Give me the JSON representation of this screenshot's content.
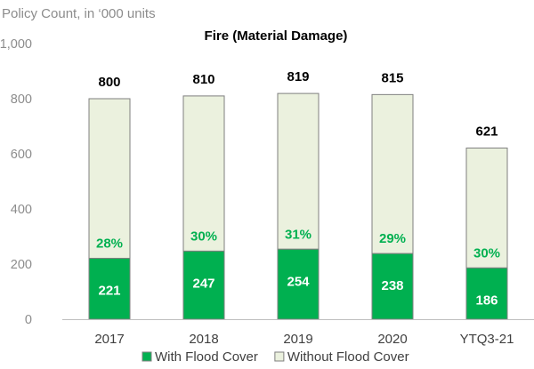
{
  "chart_data": {
    "type": "bar",
    "stacked": true,
    "title": "Fire (Material Damage)",
    "ylabel": "Policy Count, in ‘000 units",
    "xlabel": "",
    "ylim": [
      0,
      1000
    ],
    "yticks": [
      "0",
      "200",
      "400",
      "600",
      "800",
      "1,000"
    ],
    "ytick_values": [
      0,
      200,
      400,
      600,
      800,
      1000
    ],
    "grid": false,
    "legend_position": "bottom",
    "categories": [
      "2017",
      "2018",
      "2019",
      "2020",
      "YTQ3-21"
    ],
    "totals": [
      800,
      810,
      819,
      815,
      621
    ],
    "percent_labels": [
      "28%",
      "30%",
      "31%",
      "29%",
      "30%"
    ],
    "series": [
      {
        "name": "With Flood Cover",
        "values": [
          221,
          247,
          254,
          238,
          186
        ],
        "color": "#00b050"
      },
      {
        "name": "Without Flood Cover",
        "values": [
          579,
          563,
          565,
          577,
          435
        ],
        "color": "#ebf1de"
      }
    ],
    "colors": {
      "bar_border": "#7f7f7f",
      "axis": "#bfbfbf",
      "percent_text": "#00b050"
    }
  }
}
